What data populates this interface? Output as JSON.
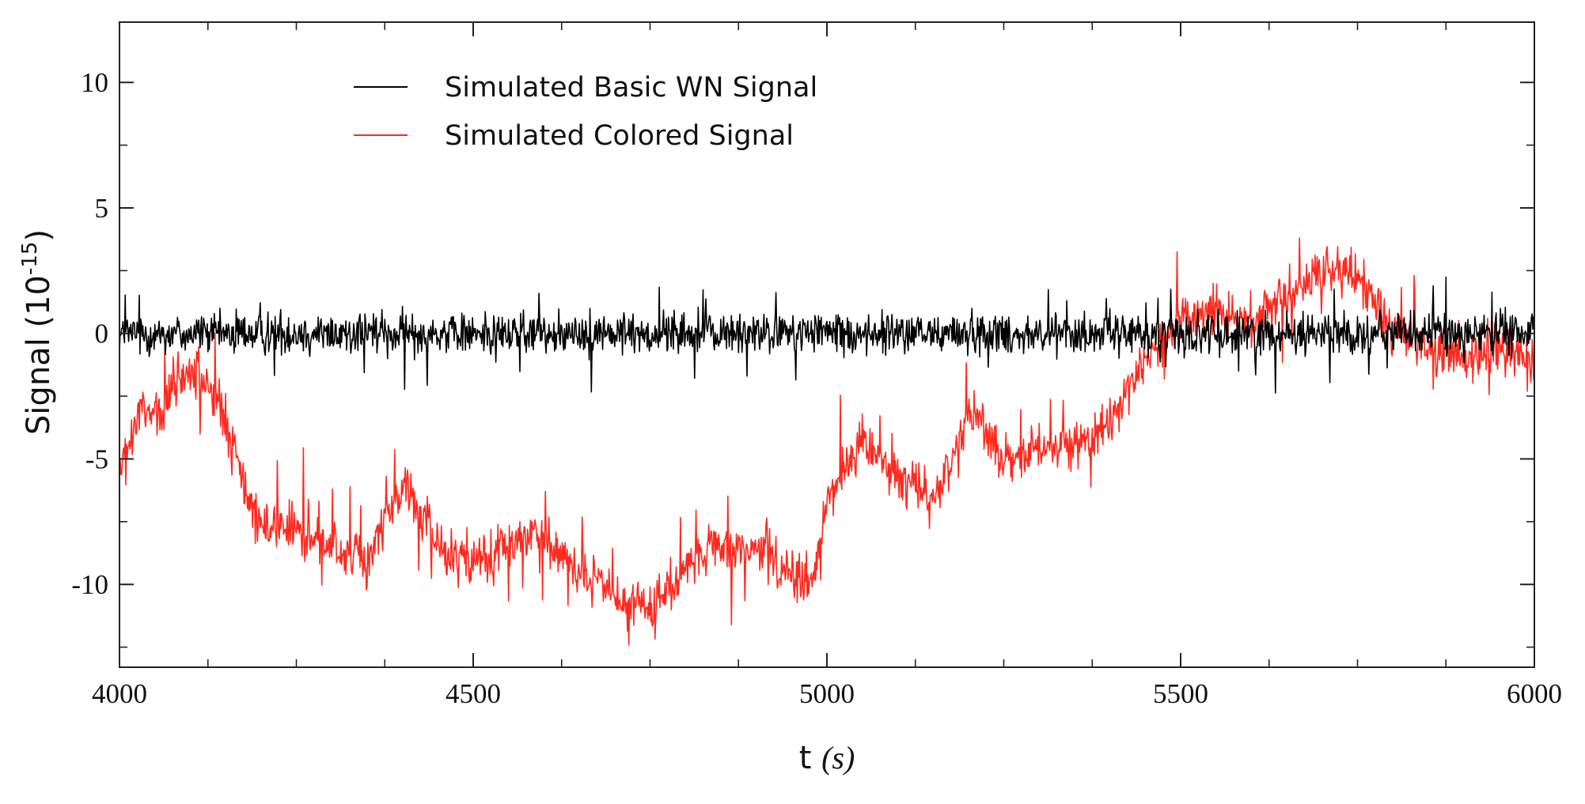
{
  "chart_data": {
    "type": "line",
    "xlabel_main": "t ",
    "xlabel_unit": "(s)",
    "ylabel_main": "Signal (10",
    "ylabel_exp": "-15",
    "ylabel_close": ")",
    "xlim": [
      4000,
      6000
    ],
    "ylim": [
      -13.3,
      12.4
    ],
    "x_ticks": [
      4000,
      4500,
      5000,
      5500,
      6000
    ],
    "x_tick_labels": [
      "4000",
      "4500",
      "5000",
      "5500",
      "6000"
    ],
    "y_ticks": [
      10,
      5,
      0,
      -5,
      -10
    ],
    "y_tick_labels": [
      "10",
      "5",
      "0",
      "-5",
      "-10"
    ],
    "grid": false,
    "legend_position": "top-left",
    "legend": [
      {
        "label": "Simulated Basic WN Signal",
        "color": "#000000"
      },
      {
        "label": "Simulated Colored Signal",
        "color": "#ff2a1f"
      }
    ],
    "series": [
      {
        "name": "Simulated Basic WN Signal",
        "color": "#000000",
        "noise_amplitude": 0.9,
        "trend": [
          [
            4000,
            0.0
          ],
          [
            4100,
            0.0
          ],
          [
            4200,
            0.0
          ],
          [
            4300,
            0.0
          ],
          [
            4400,
            0.0
          ],
          [
            4500,
            0.0
          ],
          [
            4600,
            0.0
          ],
          [
            4700,
            0.0
          ],
          [
            4800,
            0.0
          ],
          [
            4900,
            0.0
          ],
          [
            5000,
            0.0
          ],
          [
            5100,
            0.0
          ],
          [
            5200,
            0.0
          ],
          [
            5300,
            0.0
          ],
          [
            5400,
            0.0
          ],
          [
            5500,
            0.0
          ],
          [
            5600,
            0.0
          ],
          [
            5700,
            0.0
          ],
          [
            5800,
            0.0
          ],
          [
            5900,
            0.0
          ],
          [
            6000,
            0.0
          ]
        ]
      },
      {
        "name": "Simulated Colored Signal",
        "color": "#ff2a1f",
        "noise_amplitude": 1.1,
        "trend": [
          [
            4000,
            -5.5
          ],
          [
            4015,
            -4.5
          ],
          [
            4030,
            -3.0
          ],
          [
            4060,
            -3.5
          ],
          [
            4080,
            -2.0
          ],
          [
            4100,
            -1.5
          ],
          [
            4120,
            -2.0
          ],
          [
            4140,
            -2.8
          ],
          [
            4160,
            -4.5
          ],
          [
            4180,
            -6.5
          ],
          [
            4200,
            -7.5
          ],
          [
            4250,
            -7.8
          ],
          [
            4300,
            -8.5
          ],
          [
            4350,
            -9.0
          ],
          [
            4400,
            -6.0
          ],
          [
            4450,
            -8.5
          ],
          [
            4500,
            -9.0
          ],
          [
            4550,
            -8.5
          ],
          [
            4600,
            -8.0
          ],
          [
            4650,
            -9.5
          ],
          [
            4700,
            -10.5
          ],
          [
            4750,
            -11.0
          ],
          [
            4800,
            -9.5
          ],
          [
            4850,
            -8.5
          ],
          [
            4900,
            -8.5
          ],
          [
            4950,
            -9.5
          ],
          [
            4980,
            -10.0
          ],
          [
            5000,
            -6.5
          ],
          [
            5050,
            -4.5
          ],
          [
            5100,
            -5.5
          ],
          [
            5150,
            -6.8
          ],
          [
            5180,
            -5.0
          ],
          [
            5200,
            -3.0
          ],
          [
            5250,
            -5.0
          ],
          [
            5300,
            -4.5
          ],
          [
            5350,
            -4.5
          ],
          [
            5400,
            -3.5
          ],
          [
            5450,
            -1.0
          ],
          [
            5500,
            0.5
          ],
          [
            5550,
            1.0
          ],
          [
            5600,
            0.5
          ],
          [
            5650,
            1.5
          ],
          [
            5700,
            2.5
          ],
          [
            5750,
            2.5
          ],
          [
            5800,
            0.0
          ],
          [
            5850,
            -0.5
          ],
          [
            5900,
            -1.0
          ],
          [
            5950,
            -0.5
          ],
          [
            6000,
            -1.0
          ]
        ]
      }
    ]
  }
}
